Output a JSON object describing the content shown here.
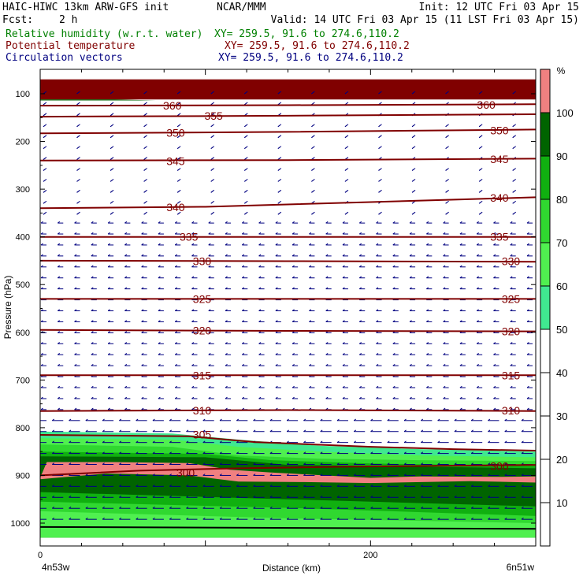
{
  "header": {
    "model": "HAIC-HIWC 13km ARW-GFS init",
    "center": "NCAR/MMM",
    "init": "Init: 12 UTC Fri 03 Apr 15",
    "fcst_label": "Fcst:",
    "fcst_value": "2 h",
    "valid": "Valid: 14 UTC Fri 03 Apr 15 (11 LST Fri 03 Apr 15)",
    "fields": [
      {
        "name": "Relative humidity (w.r.t. water)",
        "xy": "XY= 259.5, 91.6 to 274.6,110.2",
        "color": "#008000"
      },
      {
        "name": "Potential temperature",
        "xy": "XY= 259.5, 91.6 to 274.6,110.2",
        "color": "#800000"
      },
      {
        "name": "Circulation vectors",
        "xy": "XY= 259.5, 91.6 to 274.6,110.2",
        "color": "#000080"
      }
    ]
  },
  "chart_data": {
    "type": "contour-cross-section",
    "xlabel": "Distance (km)",
    "ylabel": "Pressure (hPa)",
    "xlim": [
      0,
      300
    ],
    "ylim": [
      1050,
      70
    ],
    "x_ticks": [
      0,
      200
    ],
    "y_ticks": [
      100,
      200,
      300,
      400,
      500,
      600,
      700,
      800,
      900,
      1000
    ],
    "endpoints": [
      "4n53w",
      "6n51w"
    ],
    "colorbar": {
      "unit": "%",
      "levels": [
        10,
        20,
        30,
        40,
        50,
        60,
        70,
        80,
        90,
        100
      ],
      "bands": [
        {
          "from": 50,
          "to": 60,
          "color": "#40e890"
        },
        {
          "from": 60,
          "to": 70,
          "color": "#50f050"
        },
        {
          "from": 70,
          "to": 80,
          "color": "#30d830"
        },
        {
          "from": 80,
          "to": 90,
          "color": "#10b010"
        },
        {
          "from": 90,
          "to": 100,
          "color": "#006400"
        },
        {
          "from": 100,
          "to": 110,
          "color": "#f08080"
        },
        {
          "from": 110,
          "to": 120,
          "color": "#800000"
        }
      ]
    },
    "theta_isolines": [
      {
        "value": 300,
        "x": [
          0,
          60,
          120,
          180,
          240,
          300
        ],
        "p": [
          900,
          890,
          885,
          882,
          880,
          878
        ]
      },
      {
        "value": 305,
        "x": [
          0,
          90,
          130,
          200,
          250,
          300
        ],
        "p": [
          815,
          818,
          830,
          840,
          845,
          848
        ]
      },
      {
        "value": 310,
        "x": [
          0,
          150,
          300
        ],
        "p": [
          765,
          763,
          765
        ]
      },
      {
        "value": 315,
        "x": [
          0,
          150,
          300
        ],
        "p": [
          690,
          690,
          690
        ]
      },
      {
        "value": 320,
        "x": [
          0,
          150,
          300
        ],
        "p": [
          595,
          597,
          598
        ]
      },
      {
        "value": 325,
        "x": [
          0,
          150,
          300
        ],
        "p": [
          530,
          530,
          530
        ]
      },
      {
        "value": 330,
        "x": [
          0,
          150,
          300
        ],
        "p": [
          450,
          451,
          452
        ]
      },
      {
        "value": 335,
        "x": [
          0,
          150,
          300
        ],
        "p": [
          400,
          400,
          400
        ]
      },
      {
        "value": 340,
        "x": [
          0,
          100,
          200,
          300
        ],
        "p": [
          340,
          337,
          327,
          317
        ]
      },
      {
        "value": 345,
        "x": [
          0,
          150,
          300
        ],
        "p": [
          240,
          239,
          236
        ]
      },
      {
        "value": 350,
        "x": [
          0,
          150,
          300
        ],
        "p": [
          183,
          180,
          175
        ]
      },
      {
        "value": 355,
        "x": [
          0,
          150,
          300
        ],
        "p": [
          148,
          146,
          143
        ]
      },
      {
        "value": 360,
        "x": [
          0,
          150,
          300
        ],
        "p": [
          125,
          124,
          122
        ]
      }
    ],
    "theta_labels": [
      {
        "value": "360",
        "x": 80,
        "p": 125
      },
      {
        "value": "355",
        "x": 105,
        "p": 146
      },
      {
        "value": "350",
        "x": 82,
        "p": 182
      },
      {
        "value": "345",
        "x": 82,
        "p": 241
      },
      {
        "value": "340",
        "x": 82,
        "p": 338
      },
      {
        "value": "335",
        "x": 90,
        "p": 400
      },
      {
        "value": "330",
        "x": 98,
        "p": 451
      },
      {
        "value": "325",
        "x": 98,
        "p": 530
      },
      {
        "value": "320",
        "x": 98,
        "p": 596
      },
      {
        "value": "315",
        "x": 98,
        "p": 690
      },
      {
        "value": "310",
        "x": 98,
        "p": 764
      },
      {
        "value": "305",
        "x": 98,
        "p": 814
      },
      {
        "value": "300",
        "x": 88,
        "p": 894
      },
      {
        "value": "360",
        "x": 270,
        "p": 123
      },
      {
        "value": "350",
        "x": 278,
        "p": 177
      },
      {
        "value": "345",
        "x": 278,
        "p": 237
      },
      {
        "value": "340",
        "x": 278,
        "p": 318
      },
      {
        "value": "335",
        "x": 278,
        "p": 400
      },
      {
        "value": "330",
        "x": 285,
        "p": 451
      },
      {
        "value": "325",
        "x": 285,
        "p": 530
      },
      {
        "value": "320",
        "x": 285,
        "p": 598
      },
      {
        "value": "315",
        "x": 285,
        "p": 690
      },
      {
        "value": "310",
        "x": 285,
        "p": 764
      },
      {
        "value": "300",
        "x": 278,
        "p": 880
      }
    ],
    "rh_regions": [
      {
        "rh": 55,
        "x": [
          0,
          80,
          120,
          170,
          230,
          300,
          300,
          0
        ],
        "p": [
          808,
          812,
          825,
          838,
          845,
          850,
          1030,
          1030
        ]
      },
      {
        "rh": 65,
        "x": [
          0,
          80,
          120,
          170,
          230,
          300,
          300,
          0
        ],
        "p": [
          822,
          825,
          840,
          850,
          858,
          862,
          1030,
          1030
        ]
      },
      {
        "rh": 75,
        "x": [
          0,
          80,
          120,
          170,
          230,
          300,
          300,
          0
        ],
        "p": [
          835,
          840,
          858,
          865,
          868,
          870,
          1030,
          1030
        ]
      },
      {
        "rh": 85,
        "x": [
          0,
          100,
          140,
          200,
          300,
          300,
          0
        ],
        "p": [
          850,
          855,
          868,
          875,
          880,
          1030,
          1030
        ]
      },
      {
        "rh": 95,
        "x": [
          0,
          100,
          150,
          300,
          300,
          0
        ],
        "p": [
          860,
          862,
          878,
          885,
          1030,
          1030
        ]
      },
      {
        "rh": 105,
        "x": [
          0,
          4,
          45,
          90,
          115,
          140,
          200,
          230,
          280,
          300,
          300,
          260,
          200,
          160,
          120,
          90,
          40,
          0
        ],
        "p": [
          905,
          872,
          872,
          874,
          888,
          894,
          905,
          902,
          903,
          902,
          915,
          912,
          916,
          914,
          913,
          900,
          896,
          908
        ]
      },
      {
        "rh": 85,
        "x": [
          0,
          150,
          300,
          300,
          0
        ],
        "p": [
          935,
          950,
          965,
          1030,
          1030
        ]
      },
      {
        "rh": 75,
        "x": [
          0,
          150,
          300,
          300,
          0
        ],
        "p": [
          955,
          968,
          985,
          1030,
          1030
        ]
      },
      {
        "rh": 65,
        "x": [
          0,
          150,
          300,
          300,
          0
        ],
        "p": [
          975,
          990,
          1000,
          1030,
          1030
        ]
      },
      {
        "rh": 115,
        "x": [
          0,
          300,
          300,
          0
        ],
        "p": [
          70,
          70,
          112,
          112
        ]
      },
      {
        "rh": 95,
        "x": [
          0,
          45,
          70,
          0
        ],
        "p": [
          112,
          112,
          114,
          114
        ]
      }
    ],
    "surface_line": {
      "x": [
        0,
        300
      ],
      "p": [
        1008,
        1012
      ]
    }
  }
}
